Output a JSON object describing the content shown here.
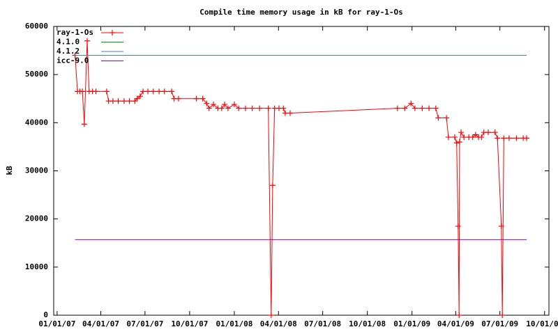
{
  "chart_data": {
    "type": "line",
    "title": "Compile time memory usage in kB for ray-1-Os",
    "ylabel": "kB",
    "xlim": [
      "12/25/06",
      "10/10/09"
    ],
    "xticks": [
      "01/01/07",
      "04/01/07",
      "07/01/07",
      "10/01/07",
      "01/01/08",
      "04/01/08",
      "07/01/08",
      "10/01/08",
      "01/01/09",
      "04/01/09",
      "07/01/09",
      "10/01/09"
    ],
    "ylim": [
      0,
      60000
    ],
    "yticks": [
      0,
      10000,
      20000,
      30000,
      40000,
      50000,
      60000
    ],
    "legend": "top-left",
    "series": [
      {
        "name": "ray-1-Os",
        "color": "#ff0000",
        "markers": true,
        "x": [
          "02/07/07",
          "02/12/07",
          "02/17/07",
          "02/22/07",
          "02/26/07",
          "03/04/07",
          "03/08/07",
          "03/15/07",
          "03/22/07",
          "04/13/07",
          "04/17/07",
          "04/26/07",
          "05/07/07",
          "05/19/07",
          "05/30/07",
          "06/10/07",
          "06/15/07",
          "06/21/07",
          "06/27/07",
          "07/07/07",
          "07/18/07",
          "07/30/07",
          "08/10/07",
          "08/25/07",
          "08/30/07",
          "09/08/07",
          "10/15/07",
          "10/28/07",
          "11/05/07",
          "11/10/07",
          "11/19/07",
          "11/28/07",
          "12/06/07",
          "12/12/07",
          "12/19/07",
          "01/01/08",
          "01/10/08",
          "01/24/08",
          "02/07/08",
          "02/22/08",
          "03/11/08",
          "03/17/08",
          "03/20/08",
          "03/24/08",
          "04/02/08",
          "04/11/08",
          "04/15/08",
          "04/25/08",
          "12/02/08",
          "12/17/08",
          "12/30/08",
          "01/07/09",
          "01/22/09",
          "02/05/09",
          "02/19/09",
          "02/24/09",
          "03/13/09",
          "03/17/09",
          "03/30/09",
          "04/03/09",
          "04/06/09",
          "04/08/09",
          "04/09/09",
          "04/12/09",
          "04/18/09",
          "04/28/09",
          "05/06/09",
          "05/12/09",
          "05/18/09",
          "05/24/09",
          "05/29/09",
          "06/07/09",
          "06/21/09",
          "06/26/09",
          "07/04/09",
          "07/06/09",
          "07/09/09",
          "07/20/09",
          "08/04/09",
          "08/18/09",
          "08/25/09"
        ],
        "values": [
          54000,
          46500,
          46500,
          46500,
          39700,
          57000,
          46500,
          46500,
          46500,
          46500,
          44500,
          44500,
          44500,
          44500,
          44500,
          44500,
          45000,
          45500,
          46500,
          46500,
          46500,
          46500,
          46500,
          46500,
          45000,
          45000,
          45000,
          45000,
          44000,
          43000,
          43800,
          43000,
          43000,
          43800,
          43000,
          43800,
          43000,
          43000,
          43000,
          43000,
          43000,
          0,
          27000,
          43000,
          43000,
          43000,
          42000,
          42000,
          43000,
          43000,
          44000,
          43000,
          43000,
          43000,
          43000,
          41000,
          41000,
          37000,
          37000,
          35800,
          18500,
          0,
          36000,
          38000,
          37000,
          37000,
          37000,
          37500,
          37000,
          37000,
          38000,
          38000,
          38000,
          36800,
          18500,
          0,
          36800,
          36800,
          36800,
          36800,
          36800
        ]
      },
      {
        "name": "4.1.0",
        "color": "#00a000",
        "markers": false,
        "x": [],
        "values": []
      },
      {
        "name": "4.1.2",
        "color": "#3a7fd0",
        "markers": false,
        "x": [
          "02/07/07",
          "08/25/09"
        ],
        "values": [
          54000,
          54000
        ]
      },
      {
        "name": "icc-9.0",
        "color": "#a000c0",
        "markers": false,
        "x": [
          "02/07/07",
          "08/25/09"
        ],
        "values": [
          15700,
          15700
        ]
      }
    ]
  }
}
